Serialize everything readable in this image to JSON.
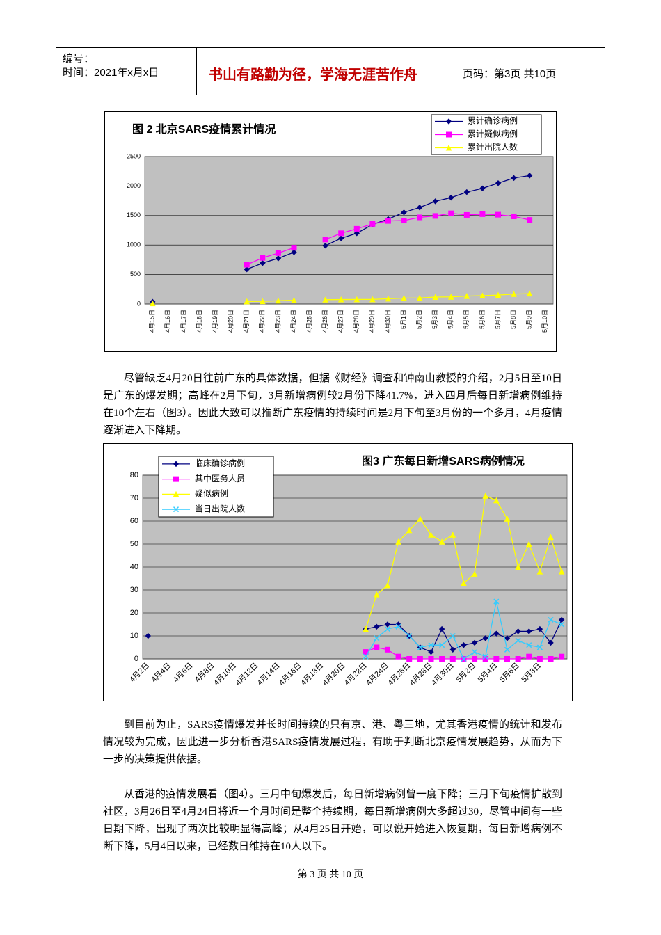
{
  "header": {
    "number": "编号：",
    "time": "时间：2021年x月x日",
    "motto": "书山有路勤为径，学海无涯苦作舟",
    "page": "页码：第3页  共10页"
  },
  "charts": [
    {
      "chart_data": {
        "type": "line",
        "title": "图 2  北京SARS疫情累计情况",
        "categories": [
          "4月15日",
          "4月16日",
          "4月17日",
          "4月18日",
          "4月19日",
          "4月20日",
          "4月21日",
          "4月22日",
          "4月23日",
          "4月24日",
          "4月25日",
          "4月26日",
          "4月27日",
          "4月28日",
          "4月29日",
          "4月30日",
          "5月1日",
          "5月2日",
          "5月3日",
          "5月4日",
          "5月5日",
          "5月6日",
          "5月7日",
          "5月8日",
          "5月9日",
          "5月10日"
        ],
        "series": [
          {
            "name": "累计确诊病例",
            "color": "#000080",
            "marker": "diamond",
            "values": [
              37,
              null,
              null,
              null,
              null,
              null,
              588,
              693,
              774,
              877,
              null,
              988,
              1114,
              1199,
              1347,
              1440,
              1553,
              1636,
              1741,
              1803,
              1897,
              1960,
              2049,
              2136,
              2177,
              null
            ]
          },
          {
            "name": "累计疑似病例",
            "color": "#ff00ff",
            "marker": "square",
            "values": [
              null,
              null,
              null,
              null,
              null,
              null,
              666,
              782,
              863,
              954,
              null,
              1093,
              1199,
              1275,
              1358,
              1408,
              1415,
              1468,
              1493,
              1537,
              1510,
              1523,
              1514,
              1486,
              1425,
              null
            ]
          },
          {
            "name": "累计出院人数",
            "color": "#ffff00",
            "marker": "triangle",
            "values": [
              10,
              null,
              null,
              null,
              null,
              null,
              43,
              46,
              55,
              64,
              null,
              73,
              76,
              78,
              78,
              90,
              100,
              103,
              118,
              121,
              134,
              141,
              152,
              168,
              175,
              null
            ]
          }
        ],
        "ylim": [
          0,
          2500
        ],
        "yticks": [
          0,
          500,
          1000,
          1500,
          2000,
          2500
        ],
        "grid": true,
        "legend": "top-right"
      }
    },
    {
      "chart_data": {
        "type": "line",
        "title": "图3  广东每日新增SARS病例情况",
        "categories": [
          "4月2日",
          null,
          "4月4日",
          null,
          "4月6日",
          null,
          "4月8日",
          null,
          "4月10日",
          null,
          "4月12日",
          null,
          "4月14日",
          null,
          "4月16日",
          null,
          "4月18日",
          null,
          "4月20日",
          null,
          "4月22日",
          null,
          "4月24日",
          null,
          "4月26日",
          null,
          "4月28日",
          null,
          "4月30日",
          null,
          "5月2日",
          null,
          "5月4日",
          null,
          "5月6日",
          null,
          "5月8日",
          null,
          null
        ],
        "series": [
          {
            "name": "临床确诊病例",
            "color": "#000080",
            "marker": "diamond",
            "values": [
              10,
              null,
              null,
              null,
              null,
              null,
              null,
              null,
              null,
              null,
              null,
              null,
              null,
              null,
              null,
              null,
              null,
              null,
              null,
              null,
              13,
              14,
              15,
              15,
              10,
              5,
              3,
              13,
              4,
              6,
              7,
              9,
              11,
              9,
              12,
              12,
              13,
              7,
              17
            ]
          },
          {
            "name": "其中医务人员",
            "color": "#ff00ff",
            "marker": "square",
            "values": [
              null,
              null,
              null,
              null,
              null,
              null,
              null,
              null,
              null,
              null,
              null,
              null,
              null,
              null,
              null,
              null,
              null,
              null,
              null,
              null,
              3,
              5,
              4,
              1,
              0,
              0,
              0,
              0,
              0,
              0,
              0,
              0,
              0,
              0,
              0,
              1,
              0,
              0,
              1
            ]
          },
          {
            "name": "疑似病例",
            "color": "#ffff00",
            "marker": "triangle",
            "values": [
              null,
              null,
              null,
              null,
              null,
              null,
              null,
              null,
              null,
              null,
              null,
              null,
              null,
              null,
              null,
              null,
              null,
              null,
              null,
              null,
              13,
              28,
              32,
              51,
              56,
              61,
              54,
              51,
              54,
              33,
              37,
              71,
              69,
              61,
              40,
              50,
              38,
              53,
              38
            ]
          },
          {
            "name": "当日出院人数",
            "color": "#33ccff",
            "marker": "x",
            "values": [
              null,
              null,
              null,
              null,
              null,
              null,
              null,
              null,
              null,
              null,
              null,
              null,
              null,
              null,
              null,
              null,
              null,
              null,
              null,
              null,
              1,
              9,
              13,
              14,
              10,
              5,
              6,
              6,
              10,
              0,
              3,
              1,
              25,
              4,
              8,
              6,
              5,
              17,
              15
            ]
          }
        ],
        "ylim": [
          0,
          80
        ],
        "yticks": [
          0,
          10,
          20,
          30,
          40,
          50,
          60,
          70,
          80
        ],
        "grid": true,
        "legend": "top-left"
      }
    }
  ],
  "paragraphs": [
    "尽管缺乏4月20日往前广东的具体数据，但据《财经》调查和钟南山教授的介绍，2月5日至10日是广东的爆发期；高峰在2月下旬，3月新增病例较2月份下降41.7%，进入四月后每日新增病例维持在10个左右（图3）。因此大致可以推断广东疫情的持续时间是2月下旬至3月份的一个多月，4月疫情逐渐进入下降期。",
    "到目前为止，SARS疫情爆发并长时间持续的只有京、港、粤三地，尤其香港疫情的统计和发布情况较为完成，因此进一步分析香港SARS疫情发展过程，有助于判断北京疫情发展趋势，从而为下一步的决策提供依据。",
    "从香港的疫情发展看（图4）。三月中旬爆发后，每日新增病例曾一度下降；三月下旬疫情扩散到社区，3月26日至4月24日将近一个月时间是整个持续期，每日新增病例大多超过30，尽管中间有一些日期下降，出现了两次比较明显得高峰；从4月25日开始，可以说开始进入恢复期，每日新增病例不断下降，5月4日以来，已经数日维持在10人以下。"
  ],
  "footer": "第 3 页 共 10 页"
}
